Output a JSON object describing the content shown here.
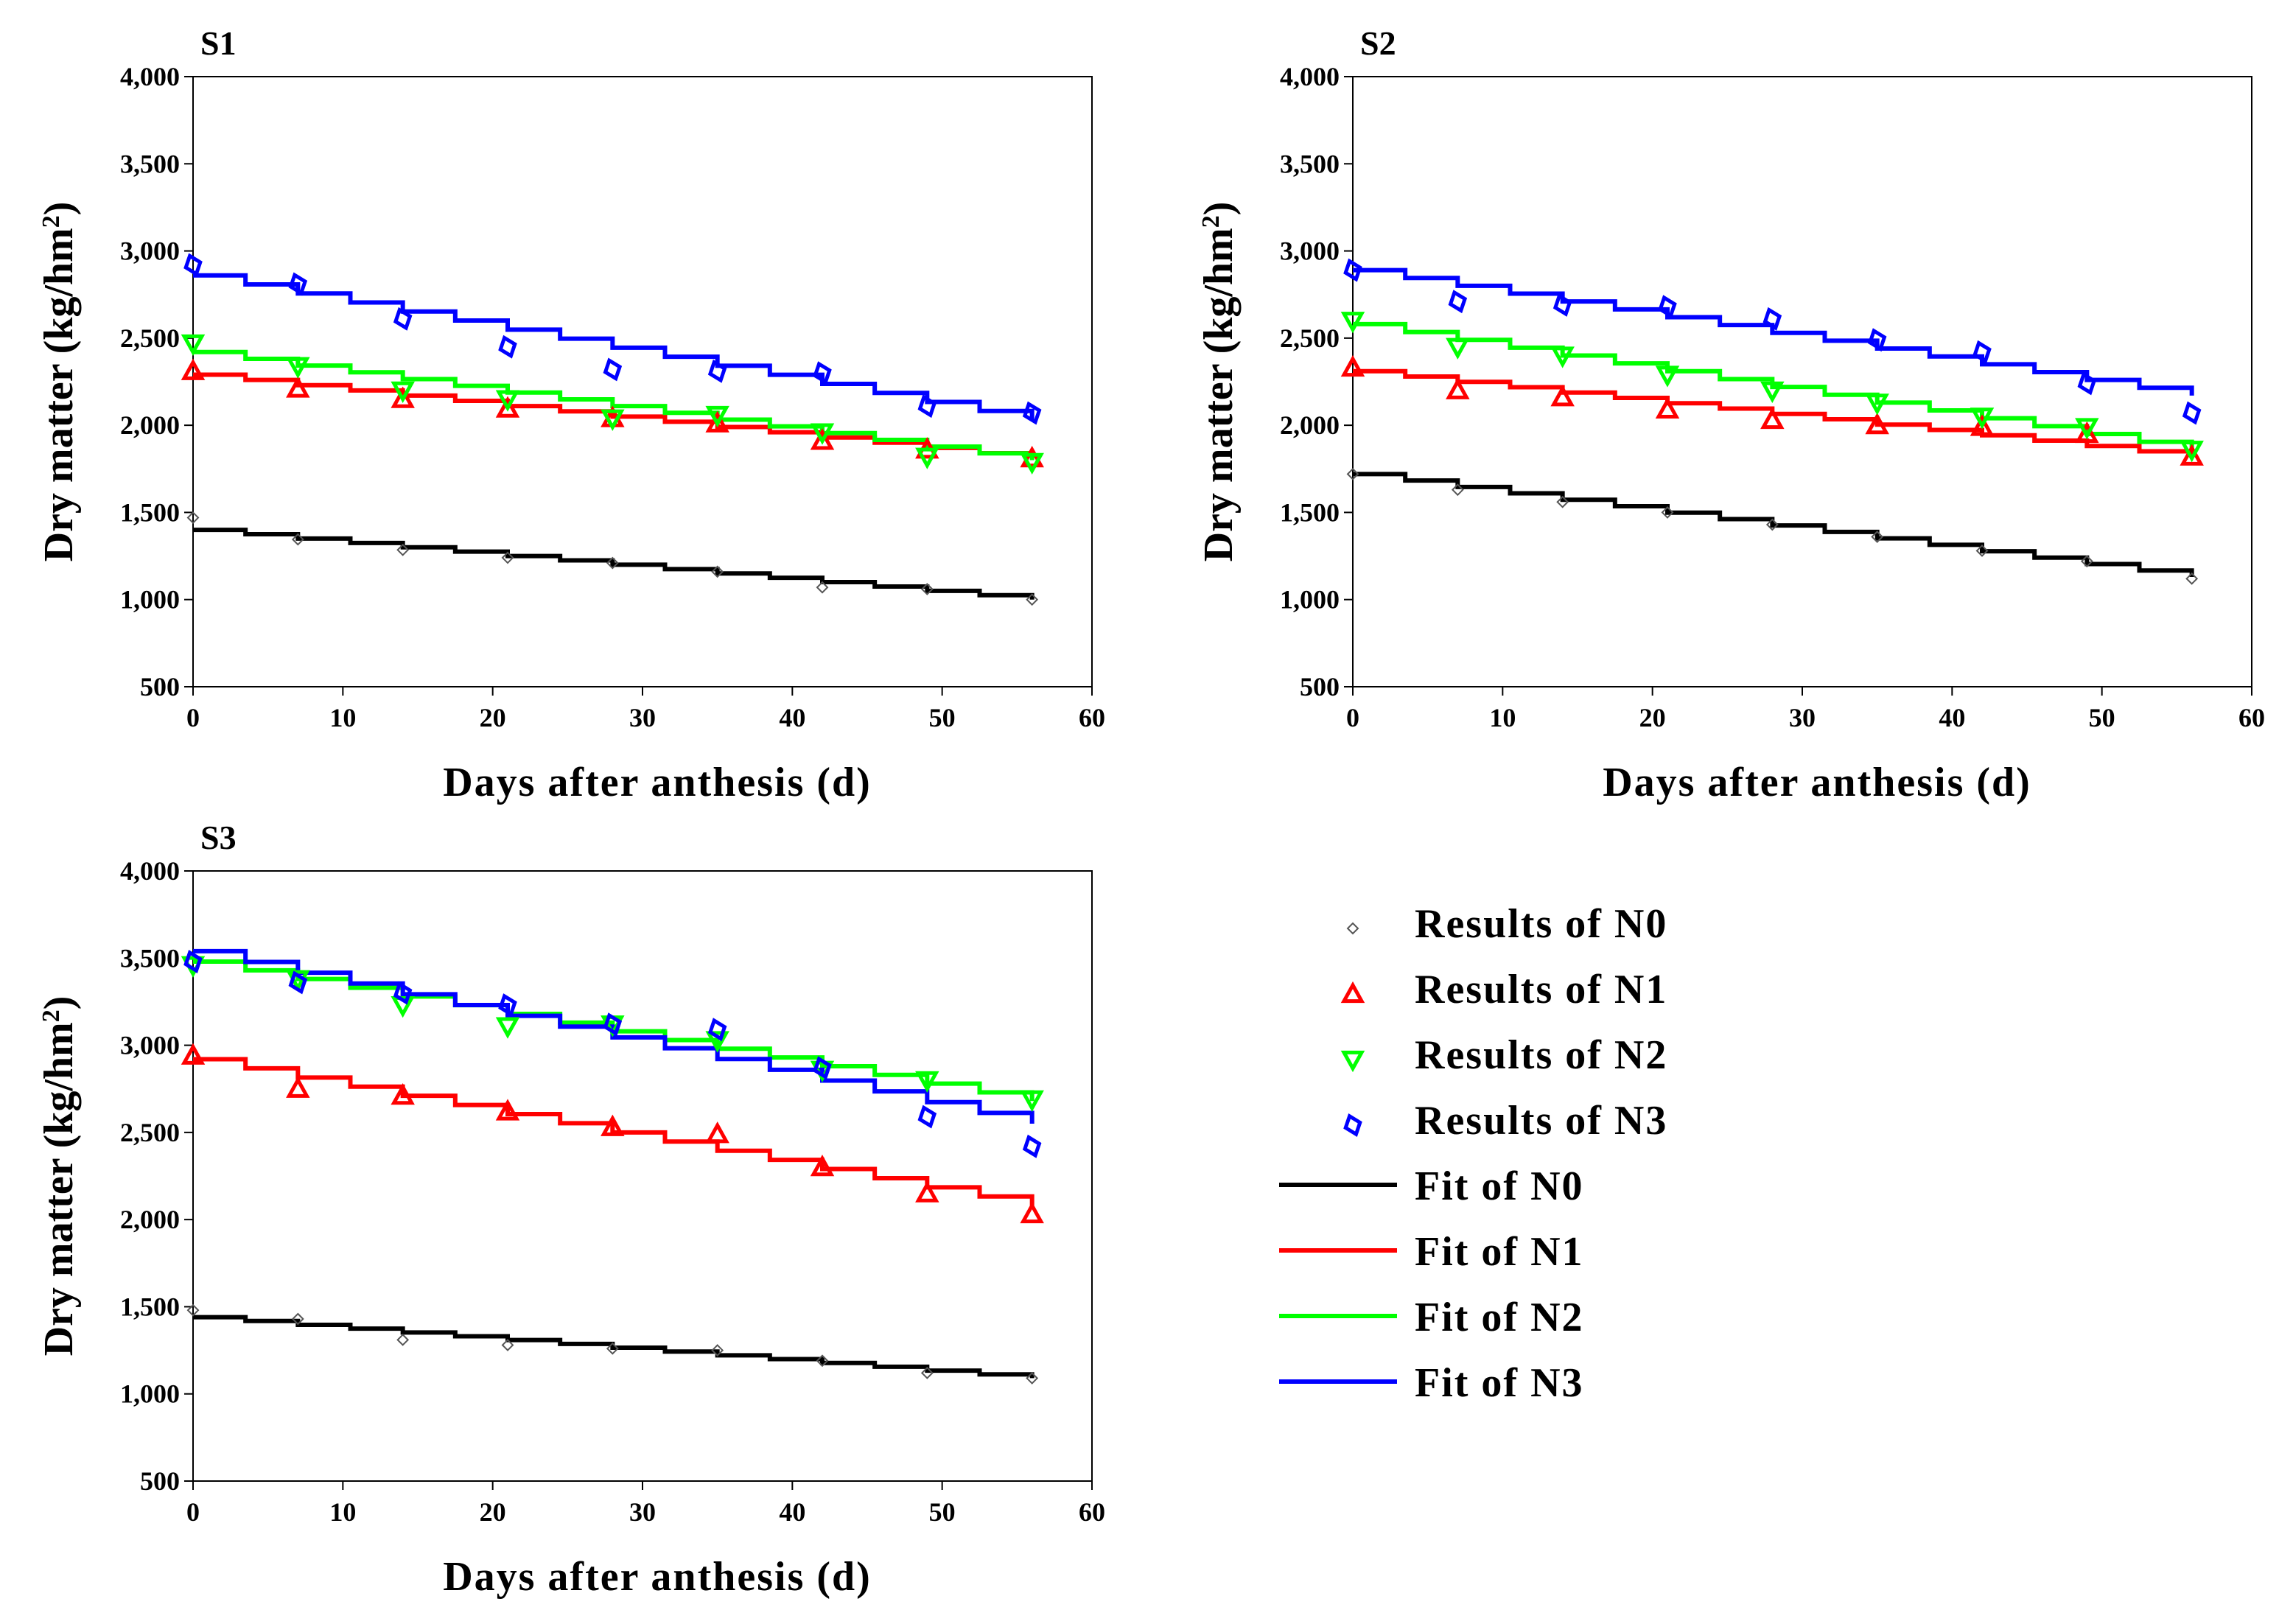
{
  "chart_data": [
    {
      "type": "line",
      "title": "S1",
      "xlabel": "Days after anthesis (d)",
      "ylabel_main": "Dry matter (kg/hm",
      "ylabel_sup": "2",
      "ylabel_close": ")",
      "xlim": [
        0,
        60
      ],
      "ylim": [
        500,
        4000
      ],
      "x_ticks": [
        0,
        10,
        20,
        30,
        40,
        50,
        60
      ],
      "x_tick_labels": [
        "0",
        "10",
        "20",
        "30",
        "40",
        "50",
        "60"
      ],
      "y_ticks": [
        500,
        1000,
        1500,
        2000,
        2500,
        3000,
        3500,
        4000
      ],
      "y_tick_labels": [
        "500",
        "1,000",
        "1,500",
        "2,000",
        "2,500",
        "3,000",
        "3,500",
        "4,000"
      ],
      "x": [
        0,
        7,
        14,
        21,
        28,
        35,
        42,
        49,
        56
      ],
      "series": [
        {
          "name": "N0",
          "values": [
            1470,
            1345,
            1285,
            1240,
            1210,
            1160,
            1070,
            1060,
            1000
          ],
          "fit": [
            1400,
            1000
          ]
        },
        {
          "name": "N1",
          "values": [
            2310,
            2210,
            2150,
            2095,
            2040,
            2010,
            1910,
            1860,
            1810
          ],
          "fit": [
            2290,
            1810
          ]
        },
        {
          "name": "N2",
          "values": [
            2470,
            2340,
            2200,
            2150,
            2040,
            2060,
            1960,
            1820,
            1790
          ],
          "fit": [
            2420,
            1800
          ]
        },
        {
          "name": "N3",
          "values": [
            2920,
            2810,
            2610,
            2450,
            2320,
            2310,
            2300,
            2110,
            2070
          ],
          "fit": [
            2860,
            2030
          ]
        }
      ]
    },
    {
      "type": "line",
      "title": "S2",
      "xlabel": "Days after anthesis (d)",
      "ylabel_main": "Dry matter (kg/hm",
      "ylabel_sup": "2",
      "ylabel_close": ")",
      "xlim": [
        0,
        60
      ],
      "ylim": [
        500,
        4000
      ],
      "x_ticks": [
        0,
        10,
        20,
        30,
        40,
        50,
        60
      ],
      "x_tick_labels": [
        "0",
        "10",
        "20",
        "30",
        "40",
        "50",
        "60"
      ],
      "y_ticks": [
        500,
        1000,
        1500,
        2000,
        2500,
        3000,
        3500,
        4000
      ],
      "y_tick_labels": [
        "500",
        "1,000",
        "1,500",
        "2,000",
        "2,500",
        "3,000",
        "3,500",
        "4,000"
      ],
      "x": [
        0,
        7,
        14,
        21,
        28,
        35,
        42,
        49,
        56
      ],
      "series": [
        {
          "name": "N0",
          "values": [
            1720,
            1630,
            1560,
            1500,
            1430,
            1360,
            1280,
            1220,
            1120
          ],
          "fit": [
            1720,
            1130
          ]
        },
        {
          "name": "N1",
          "values": [
            2330,
            2200,
            2160,
            2090,
            2030,
            2000,
            1990,
            1950,
            1820
          ],
          "fit": [
            2310,
            1820
          ]
        },
        {
          "name": "N2",
          "values": [
            2600,
            2450,
            2400,
            2290,
            2200,
            2130,
            2050,
            1990,
            1860
          ],
          "fit": [
            2580,
            1860
          ]
        },
        {
          "name": "N3",
          "values": [
            2890,
            2710,
            2690,
            2680,
            2610,
            2490,
            2420,
            2240,
            2070
          ],
          "fit": [
            2890,
            2170
          ]
        }
      ]
    },
    {
      "type": "line",
      "title": "S3",
      "xlabel": "Days after anthesis (d)",
      "ylabel_main": "Dry matter (kg/hm",
      "ylabel_sup": "2",
      "ylabel_close": ")",
      "xlim": [
        0,
        60
      ],
      "ylim": [
        500,
        4000
      ],
      "x_ticks": [
        0,
        10,
        20,
        30,
        40,
        50,
        60
      ],
      "x_tick_labels": [
        "0",
        "10",
        "20",
        "30",
        "40",
        "50",
        "60"
      ],
      "y_ticks": [
        500,
        1000,
        1500,
        2000,
        2500,
        3000,
        3500,
        4000
      ],
      "y_tick_labels": [
        "500",
        "1,000",
        "1,500",
        "2,000",
        "2,500",
        "3,000",
        "3,500",
        "4,000"
      ],
      "x": [
        0,
        7,
        14,
        21,
        28,
        35,
        42,
        49,
        56
      ],
      "series": [
        {
          "name": "N0",
          "values": [
            1480,
            1430,
            1310,
            1280,
            1260,
            1250,
            1190,
            1120,
            1090
          ],
          "fit": [
            1440,
            1090
          ]
        },
        {
          "name": "N1",
          "values": [
            2940,
            2750,
            2710,
            2620,
            2530,
            2490,
            2300,
            2150,
            2030
          ],
          "fit": [
            2920,
            2080
          ]
        },
        {
          "name": "N2",
          "values": [
            3460,
            3380,
            3230,
            3110,
            3120,
            3030,
            2860,
            2800,
            2690
          ],
          "fit": [
            3480,
            2680
          ]
        },
        {
          "name": "N3",
          "values": [
            3480,
            3360,
            3300,
            3230,
            3120,
            3090,
            2870,
            2590,
            2420
          ],
          "fit": [
            3540,
            2550
          ]
        }
      ]
    }
  ],
  "series_styles": {
    "N0": {
      "color": "#000000",
      "marker": "diamond-small"
    },
    "N1": {
      "color": "#ff0000",
      "marker": "triangle-up"
    },
    "N2": {
      "color": "#00ff00",
      "marker": "triangle-down"
    },
    "N3": {
      "color": "#0000ff",
      "marker": "diamond"
    }
  },
  "legend": {
    "items": [
      {
        "kind": "marker",
        "series": "N0",
        "label": "Results of  N0"
      },
      {
        "kind": "marker",
        "series": "N1",
        "label": "Results of  N1"
      },
      {
        "kind": "marker",
        "series": "N2",
        "label": "Results of  N2"
      },
      {
        "kind": "marker",
        "series": "N3",
        "label": "Results of  N3"
      },
      {
        "kind": "line",
        "series": "N0",
        "label": "Fit of  N0"
      },
      {
        "kind": "line",
        "series": "N1",
        "label": "Fit of  N1"
      },
      {
        "kind": "line",
        "series": "N2",
        "label": "Fit of  N2"
      },
      {
        "kind": "line",
        "series": "N3",
        "label": "Fit of  N3"
      }
    ]
  }
}
